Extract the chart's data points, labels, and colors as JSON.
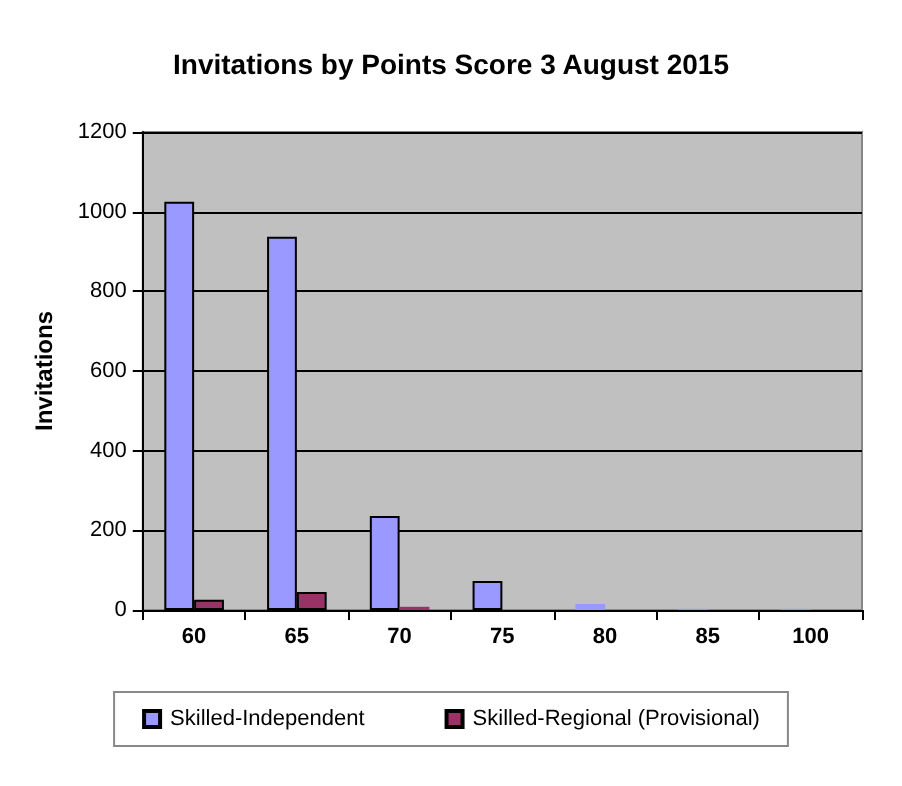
{
  "chart_data": {
    "type": "bar",
    "title": "Invitations by Points Score 3 August 2015",
    "ylabel": "Invitations",
    "categories": [
      "60",
      "65",
      "70",
      "75",
      "80",
      "85",
      "100"
    ],
    "series": [
      {
        "name": "Skilled-Independent",
        "color": "#9999ff",
        "values": [
          1025,
          937,
          236,
          73,
          15,
          3,
          3
        ]
      },
      {
        "name": "Skilled-Regional (Provisional)",
        "color": "#993366",
        "values": [
          26,
          45,
          8,
          0,
          0,
          0,
          0
        ]
      }
    ],
    "ylim": [
      0,
      1200
    ],
    "yticks": [
      0,
      200,
      400,
      600,
      800,
      1000,
      1200
    ],
    "grid": "y",
    "legend": "bottom"
  }
}
